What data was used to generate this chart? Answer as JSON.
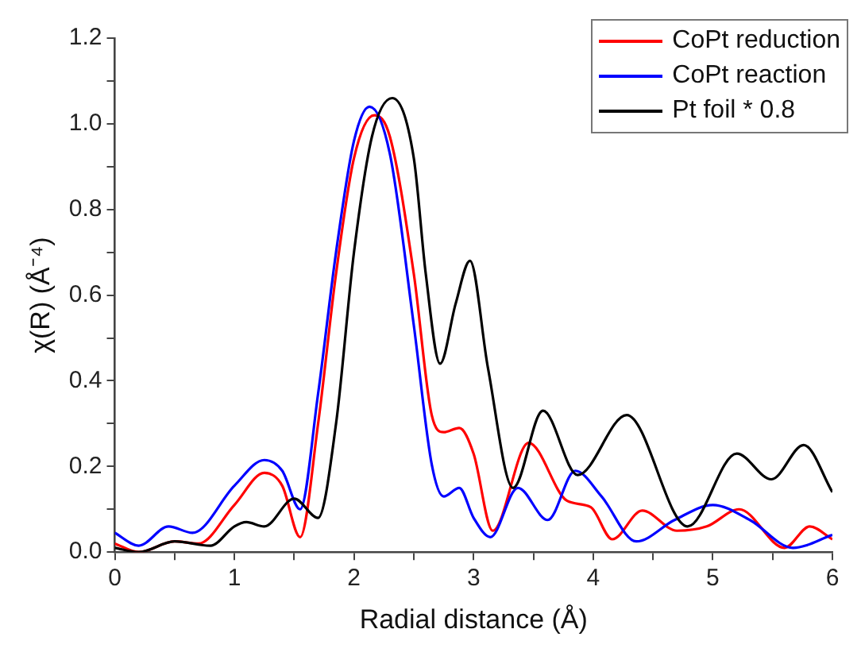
{
  "chart_data": {
    "type": "line",
    "xlabel": "Radial distance (Å)",
    "ylabel": "χ(R) (Å⁻⁴)",
    "xlim": [
      0,
      6
    ],
    "ylim": [
      0,
      1.2
    ],
    "xticks": [
      0,
      {
        "value": 0.5,
        "label": null
      },
      1,
      {
        "value": 1.5,
        "label": null
      },
      2,
      {
        "value": 2.5,
        "label": null
      },
      3,
      {
        "value": 3.5,
        "label": null
      },
      4,
      {
        "value": 4.5,
        "label": null
      },
      5,
      {
        "value": 5.5,
        "label": null
      },
      6
    ],
    "yticks": [
      {
        "value": 0,
        "label": "0.0"
      },
      {
        "value": 0.1,
        "label": null
      },
      0.2,
      {
        "value": 0.3,
        "label": null
      },
      0.4,
      {
        "value": 0.5,
        "label": null
      },
      0.6,
      {
        "value": 0.7,
        "label": null
      },
      0.8,
      {
        "value": 0.9,
        "label": null
      },
      {
        "value": 1,
        "label": "1.0"
      },
      {
        "value": 1.1,
        "label": null
      },
      1.2
    ],
    "legend": "top right",
    "marker": "none",
    "line_style": "solid",
    "series": [
      {
        "name": "CoPt reduction",
        "color": "#ff0000",
        "x": [
          0,
          0.2,
          0.5,
          0.7,
          1.0,
          1.25,
          1.4,
          1.55,
          1.7,
          1.85,
          2.0,
          2.17,
          2.3,
          2.5,
          2.65,
          2.75,
          2.88,
          3.0,
          3.16,
          3.46,
          3.78,
          3.98,
          4.16,
          4.41,
          4.7,
          4.95,
          5.22,
          5.6,
          5.81,
          6.0
        ],
        "values": [
          0.02,
          0.0,
          0.025,
          0.02,
          0.11,
          0.185,
          0.155,
          0.035,
          0.3,
          0.65,
          0.92,
          1.02,
          0.97,
          0.65,
          0.32,
          0.28,
          0.29,
          0.23,
          0.05,
          0.255,
          0.12,
          0.105,
          0.03,
          0.097,
          0.05,
          0.06,
          0.1,
          0.01,
          0.06,
          0.03
        ]
      },
      {
        "name": "CoPt reaction",
        "color": "#0000ff",
        "x": [
          0,
          0.2,
          0.45,
          0.65,
          1.0,
          1.25,
          1.4,
          1.55,
          1.7,
          1.85,
          2.0,
          2.13,
          2.3,
          2.5,
          2.65,
          2.75,
          2.88,
          3.0,
          3.14,
          3.37,
          3.62,
          3.85,
          4.07,
          4.36,
          4.68,
          5.0,
          5.31,
          5.67,
          6.0
        ],
        "values": [
          0.045,
          0.015,
          0.06,
          0.045,
          0.155,
          0.215,
          0.19,
          0.1,
          0.37,
          0.7,
          0.96,
          1.04,
          0.93,
          0.53,
          0.205,
          0.13,
          0.15,
          0.08,
          0.035,
          0.15,
          0.075,
          0.19,
          0.13,
          0.025,
          0.075,
          0.11,
          0.075,
          0.01,
          0.04
        ]
      },
      {
        "name": "Pt foil * 0.8",
        "color": "#000000",
        "x": [
          0,
          0.2,
          0.5,
          0.8,
          1.0,
          1.1,
          1.25,
          1.5,
          1.7,
          1.85,
          2.0,
          2.15,
          2.32,
          2.5,
          2.6,
          2.72,
          2.85,
          2.97,
          3.12,
          3.33,
          3.58,
          3.87,
          4.28,
          4.79,
          5.2,
          5.49,
          5.76,
          6.0
        ],
        "values": [
          0.01,
          0.0,
          0.025,
          0.015,
          0.06,
          0.07,
          0.06,
          0.125,
          0.08,
          0.3,
          0.7,
          0.97,
          1.06,
          0.92,
          0.65,
          0.44,
          0.58,
          0.68,
          0.43,
          0.15,
          0.33,
          0.18,
          0.32,
          0.06,
          0.23,
          0.17,
          0.25,
          0.14
        ]
      }
    ]
  }
}
